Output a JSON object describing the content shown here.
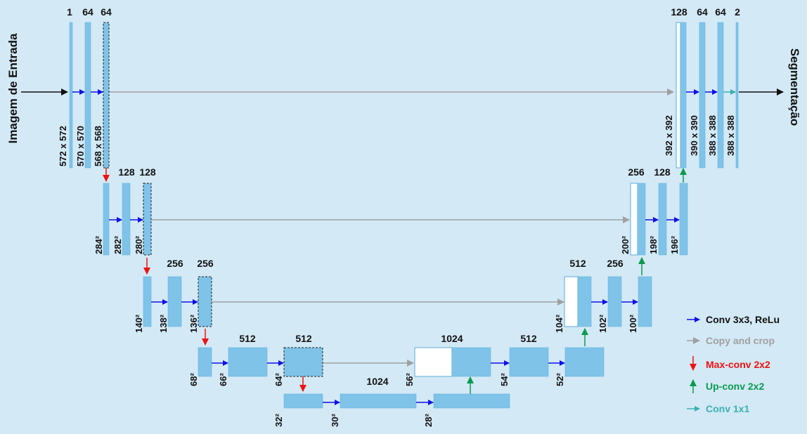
{
  "colors": {
    "background": "#d3e9f6",
    "block": "#7fc4e8",
    "block_border": "#5aaad8",
    "conv": "#1010e8",
    "copy": "#a0a0a0",
    "pool": "#ee1111",
    "up": "#0a9a50",
    "conv1x1": "#3cb0b0",
    "io_arrow": "#111111"
  },
  "input_label": "Imagem de Entrada",
  "output_label": "Segmentação",
  "channels": {
    "l1": [
      "1",
      "64",
      "64"
    ],
    "l2": [
      "128",
      "128"
    ],
    "l3": [
      "256",
      "256"
    ],
    "l4": [
      "512",
      "512"
    ],
    "bottom": "1024",
    "u4_concat": "1024",
    "u4": "512",
    "u3_concat": "512",
    "u3": "256",
    "u2": [
      "256",
      "128"
    ],
    "u1": [
      "128",
      "64",
      "64",
      "2"
    ]
  },
  "dims": {
    "l1": [
      "572 x 572",
      "570 x 570",
      "568 x 568"
    ],
    "l2": [
      "284²",
      "282²",
      "280²"
    ],
    "l3": [
      "140²",
      "138²",
      "136²"
    ],
    "l4": [
      "68²",
      "66²",
      "64²"
    ],
    "bottom": [
      "32²",
      "30²",
      "28²"
    ],
    "u4": [
      "56²",
      "54²",
      "52²"
    ],
    "u3": [
      "104²",
      "102²",
      "100²"
    ],
    "u2": [
      "200²",
      "198²",
      "196²"
    ],
    "u1": [
      "392 x 392",
      "390 x 390",
      "388 x 388",
      "388 x 388"
    ]
  },
  "legend": [
    {
      "label": "Conv 3x3, ReLu",
      "kind": "conv",
      "color": "#1010e8"
    },
    {
      "label": "Copy and crop",
      "kind": "copy",
      "color": "#a0a0a0"
    },
    {
      "label": "Max-conv 2x2",
      "kind": "pool",
      "color": "#ee1111"
    },
    {
      "label": "Up-conv 2x2",
      "kind": "up",
      "color": "#0a9a50"
    },
    {
      "label": "Conv 1x1",
      "kind": "conv1x1",
      "color": "#3cb0b0"
    }
  ]
}
